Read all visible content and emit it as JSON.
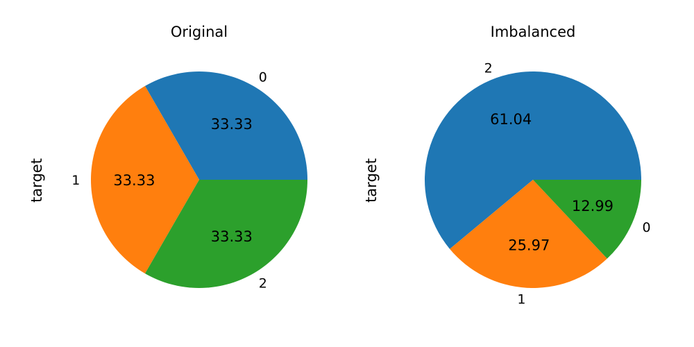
{
  "chart_data": [
    {
      "type": "pie",
      "title": "Original",
      "ylabel": "target",
      "categories": [
        "0",
        "1",
        "2"
      ],
      "values": [
        33.33,
        33.33,
        33.33
      ],
      "labels": [
        "33.33",
        "33.33",
        "33.33"
      ],
      "colors": [
        "#1f77b4",
        "#ff7f0e",
        "#2ca02c"
      ]
    },
    {
      "type": "pie",
      "title": "Imbalanced",
      "ylabel": "target",
      "categories": [
        "2",
        "1",
        "0"
      ],
      "values": [
        61.04,
        25.97,
        12.99
      ],
      "labels": [
        "61.04",
        "25.97",
        "12.99"
      ],
      "colors": [
        "#1f77b4",
        "#ff7f0e",
        "#2ca02c"
      ]
    }
  ]
}
